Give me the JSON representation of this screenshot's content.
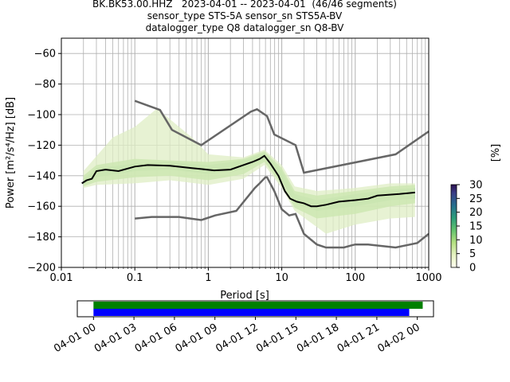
{
  "header": {
    "line1": "BK.BK53.00.HHZ   2023-04-01 -- 2023-04-01  (46/46 segments)",
    "line2": "sensor_type STS-5A sensor_sn STS5A-BV",
    "line3": "datalogger_type Q8 datalogger_sn Q8-BV"
  },
  "chart_data": [
    {
      "type": "heatmap",
      "title": "BK.BK53.00.HHZ   2023-04-01 -- 2023-04-01  (46/46 segments)",
      "xlabel": "Period [s]",
      "ylabel": "Power [m²/s⁴/Hz] [dB]",
      "x_scale": "log",
      "xlim": [
        0.01,
        1000
      ],
      "ylim": [
        -200,
        -50
      ],
      "x_ticks": [
        "0.01",
        "0.1",
        "1",
        "10",
        "100",
        "1000"
      ],
      "y_ticks": [
        "−200",
        "−180",
        "−160",
        "−140",
        "−120",
        "−100",
        "−80",
        "−60"
      ],
      "grid": true,
      "colorbar": {
        "label": "[%]",
        "ticks": [
          "0",
          "5",
          "10",
          "15",
          "20",
          "25",
          "30"
        ],
        "range": [
          0,
          30
        ]
      },
      "model_curves": {
        "high_noise_model": [
          [
            0.1,
            -91
          ],
          [
            0.22,
            -97
          ],
          [
            0.32,
            -110
          ],
          [
            0.8,
            -120
          ],
          [
            3.8,
            -98
          ],
          [
            4.6,
            -96.5
          ],
          [
            6.3,
            -101
          ],
          [
            7.9,
            -113
          ],
          [
            15.4,
            -120
          ],
          [
            20,
            -138
          ],
          [
            354.8,
            -126
          ],
          [
            1000,
            -111
          ]
        ],
        "low_noise_model": [
          [
            0.1,
            -168
          ],
          [
            0.17,
            -167
          ],
          [
            0.4,
            -167
          ],
          [
            0.8,
            -169
          ],
          [
            1.24,
            -166
          ],
          [
            2.4,
            -163
          ],
          [
            4.3,
            -148
          ],
          [
            5.0,
            -145
          ],
          [
            6.0,
            -141
          ],
          [
            6.3,
            -141
          ],
          [
            7.9,
            -150
          ],
          [
            10,
            -162
          ],
          [
            12.6,
            -166
          ],
          [
            15.4,
            -165
          ],
          [
            20,
            -178
          ],
          [
            30,
            -185
          ],
          [
            40,
            -187
          ],
          [
            70,
            -187
          ],
          [
            90,
            -185.5
          ],
          [
            100,
            -185
          ],
          [
            150,
            -185
          ],
          [
            354.8,
            -187
          ],
          [
            700,
            -184
          ],
          [
            1000,
            -178
          ]
        ]
      },
      "median_curve": [
        [
          0.019,
          -145
        ],
        [
          0.022,
          -143
        ],
        [
          0.026,
          -142
        ],
        [
          0.03,
          -137
        ],
        [
          0.04,
          -136
        ],
        [
          0.06,
          -137
        ],
        [
          0.1,
          -134
        ],
        [
          0.15,
          -133
        ],
        [
          0.3,
          -133.5
        ],
        [
          0.6,
          -135
        ],
        [
          1.2,
          -136.5
        ],
        [
          2,
          -136
        ],
        [
          3,
          -133
        ],
        [
          4,
          -131
        ],
        [
          5,
          -129
        ],
        [
          5.8,
          -127
        ],
        [
          7,
          -132
        ],
        [
          9,
          -140
        ],
        [
          11,
          -150
        ],
        [
          13,
          -155
        ],
        [
          16,
          -157
        ],
        [
          20,
          -158
        ],
        [
          25,
          -160
        ],
        [
          30,
          -160
        ],
        [
          40,
          -159
        ],
        [
          60,
          -157
        ],
        [
          100,
          -156
        ],
        [
          150,
          -155
        ],
        [
          200,
          -153
        ],
        [
          400,
          -152
        ],
        [
          650,
          -151
        ]
      ],
      "density_bands": [
        {
          "percent": 28,
          "upper": [
            [
              0.02,
              -142
            ],
            [
              0.03,
              -135
            ],
            [
              0.1,
              -132
            ],
            [
              0.3,
              -131
            ],
            [
              1,
              -133
            ],
            [
              3,
              -130
            ],
            [
              5.8,
              -125
            ],
            [
              10,
              -137
            ],
            [
              15,
              -152
            ],
            [
              30,
              -156
            ],
            [
              100,
              -152
            ],
            [
              300,
              -149
            ],
            [
              650,
              -148
            ]
          ],
          "lower": [
            [
              0.02,
              -146
            ],
            [
              0.03,
              -141
            ],
            [
              0.1,
              -137
            ],
            [
              0.3,
              -136
            ],
            [
              1,
              -139
            ],
            [
              3,
              -136
            ],
            [
              5.8,
              -129
            ],
            [
              10,
              -143
            ],
            [
              15,
              -158
            ],
            [
              30,
              -163
            ],
            [
              100,
              -160
            ],
            [
              300,
              -156
            ],
            [
              650,
              -155
            ]
          ]
        },
        {
          "percent": 12,
          "upper": [
            [
              0.02,
              -140
            ],
            [
              0.03,
              -133
            ],
            [
              0.1,
              -129
            ],
            [
              0.3,
              -130
            ],
            [
              1,
              -131
            ],
            [
              3,
              -129
            ],
            [
              5.8,
              -124
            ],
            [
              10,
              -135
            ],
            [
              15,
              -150
            ],
            [
              30,
              -153
            ],
            [
              100,
              -150
            ],
            [
              300,
              -147
            ],
            [
              650,
              -146
            ]
          ],
          "lower": [
            [
              0.02,
              -147
            ],
            [
              0.03,
              -144
            ],
            [
              0.1,
              -141
            ],
            [
              0.3,
              -140
            ],
            [
              1,
              -143
            ],
            [
              3,
              -139
            ],
            [
              5.8,
              -131
            ],
            [
              10,
              -146
            ],
            [
              15,
              -161
            ],
            [
              30,
              -168
            ],
            [
              100,
              -165
            ],
            [
              300,
              -160
            ],
            [
              650,
              -158
            ]
          ]
        },
        {
          "percent": 4,
          "upper": [
            [
              0.02,
              -137
            ],
            [
              0.05,
              -115
            ],
            [
              0.1,
              -108
            ],
            [
              0.2,
              -96
            ],
            [
              0.3,
              -103
            ],
            [
              0.6,
              -115
            ],
            [
              1,
              -126
            ],
            [
              3,
              -128
            ],
            [
              5.8,
              -123
            ],
            [
              10,
              -133
            ],
            [
              15,
              -147
            ],
            [
              30,
              -150
            ],
            [
              100,
              -148
            ],
            [
              300,
              -145
            ],
            [
              650,
              -145
            ]
          ],
          "lower": [
            [
              0.02,
              -148
            ],
            [
              0.03,
              -146
            ],
            [
              0.1,
              -145
            ],
            [
              0.3,
              -143
            ],
            [
              1,
              -146
            ],
            [
              3,
              -142
            ],
            [
              5.8,
              -133
            ],
            [
              10,
              -148
            ],
            [
              15,
              -163
            ],
            [
              40,
              -178
            ],
            [
              100,
              -172
            ],
            [
              300,
              -168
            ],
            [
              650,
              -167
            ]
          ]
        }
      ]
    },
    {
      "type": "timeline",
      "xlim": [
        "2023-04-01 00",
        "2023-04-02 00"
      ],
      "x_ticks": [
        "04-01 00",
        "04-01 03",
        "04-01 06",
        "04-01 09",
        "04-01 12",
        "04-01 15",
        "04-01 18",
        "04-01 21",
        "04-02 00"
      ],
      "rows": [
        {
          "color": "#008000",
          "start_hour": 0,
          "end_hour": 24.4
        },
        {
          "color": "#0000ff",
          "start_hour": 0,
          "end_hour": 23.4
        }
      ],
      "xlim_hours": [
        -1.2,
        25.2
      ]
    }
  ]
}
